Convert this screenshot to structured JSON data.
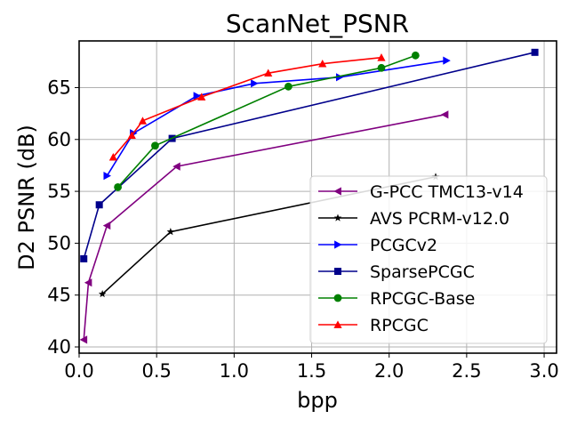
{
  "chart_data": {
    "type": "line",
    "title": "ScanNet_PSNR",
    "xlabel": "bpp",
    "ylabel": "D2 PSNR (dB)",
    "xlim": [
      0.0,
      3.08
    ],
    "ylim": [
      39.4,
      69.5
    ],
    "xticks": [
      {
        "value": 0.0,
        "label": "0.0"
      },
      {
        "value": 0.5,
        "label": "0.5"
      },
      {
        "value": 1.0,
        "label": "1.0"
      },
      {
        "value": 1.5,
        "label": "1.5"
      },
      {
        "value": 2.0,
        "label": "2.0"
      },
      {
        "value": 2.5,
        "label": "2.5"
      },
      {
        "value": 3.0,
        "label": "3.0"
      }
    ],
    "yticks": [
      {
        "value": 40,
        "label": "40"
      },
      {
        "value": 45,
        "label": "45"
      },
      {
        "value": 50,
        "label": "50"
      },
      {
        "value": 55,
        "label": "55"
      },
      {
        "value": 60,
        "label": "60"
      },
      {
        "value": 65,
        "label": "65"
      }
    ],
    "grid": true,
    "legend_position": "lower-right",
    "series": [
      {
        "name": "G-PCC TMC13-v14",
        "color": "#800080",
        "marker": "triangle-left",
        "x": [
          0.03,
          0.06,
          0.18,
          0.63,
          2.36
        ],
        "y": [
          40.7,
          46.2,
          51.7,
          57.4,
          62.4
        ]
      },
      {
        "name": "AVS PCRM-v12.0",
        "color": "#000000",
        "marker": "star",
        "x": [
          0.15,
          0.59,
          2.3
        ],
        "y": [
          45.1,
          51.1,
          56.4
        ]
      },
      {
        "name": "PCGCv2",
        "color": "#0000ff",
        "marker": "triangle-right",
        "x": [
          0.18,
          0.35,
          0.76,
          1.13,
          1.68,
          2.37
        ],
        "y": [
          56.5,
          60.6,
          64.2,
          65.4,
          66.0,
          67.6
        ]
      },
      {
        "name": "SparsePCGC",
        "color": "#00008b",
        "marker": "square",
        "x": [
          0.03,
          0.13,
          0.6,
          2.94
        ],
        "y": [
          48.5,
          53.7,
          60.1,
          68.4
        ]
      },
      {
        "name": "RPCGC-Base",
        "color": "#008000",
        "marker": "circle",
        "x": [
          0.25,
          0.49,
          1.35,
          1.95,
          2.17
        ],
        "y": [
          55.4,
          59.4,
          65.1,
          66.9,
          68.1
        ]
      },
      {
        "name": "RPCGC",
        "color": "#ff0000",
        "marker": "triangle-up",
        "x": [
          0.22,
          0.34,
          0.41,
          0.79,
          1.22,
          1.57,
          1.95
        ],
        "y": [
          58.3,
          60.4,
          61.8,
          64.1,
          66.4,
          67.3,
          67.9
        ]
      }
    ]
  }
}
